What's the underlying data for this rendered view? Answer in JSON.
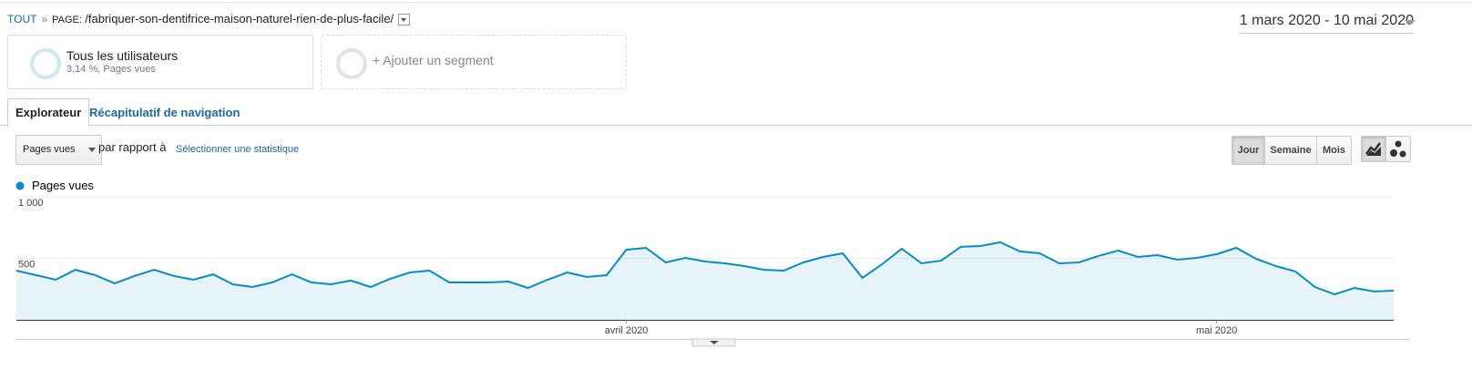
{
  "breadcrumb": {
    "root": "TOUT",
    "separator": "»",
    "label": "PAGE:",
    "path": "/fabriquer-son-dentifrice-maison-naturel-rien-de-plus-facile/"
  },
  "date_range": "1 mars 2020 - 10 mai 2020",
  "segments": [
    {
      "title": "Tous les utilisateurs",
      "subtitle": "3,14 %, Pages vues"
    }
  ],
  "add_segment": "+ Ajouter un segment",
  "tabs": [
    "Explorateur",
    "Récapitulatif de navigation"
  ],
  "controls": {
    "metric": "Pages vues",
    "compare": "par rapport à",
    "select_metric": "Sélectionner une statistique",
    "periods": [
      "Jour",
      "Semaine",
      "Mois"
    ]
  },
  "chart_data": {
    "type": "line",
    "categories": [
      null,
      null,
      null,
      null,
      null,
      null,
      null,
      null,
      null,
      null,
      null,
      null,
      null,
      null,
      null,
      null,
      null,
      null,
      null,
      null,
      null,
      null,
      null,
      null,
      null,
      null,
      null,
      null,
      null,
      null,
      null,
      "avril 2020",
      null,
      null,
      null,
      null,
      null,
      null,
      null,
      null,
      null,
      null,
      null,
      null,
      null,
      null,
      null,
      null,
      null,
      null,
      null,
      null,
      null,
      null,
      null,
      null,
      null,
      null,
      null,
      null,
      null,
      "mai 2020",
      null,
      null,
      null,
      null,
      null,
      null,
      null,
      null,
      null
    ],
    "series": [
      {
        "name": "Pages vues",
        "color": "#058dc7",
        "values": [
          400,
          363,
          326,
          407,
          363,
          296,
          356,
          407,
          356,
          326,
          370,
          289,
          267,
          304,
          370,
          304,
          289,
          319,
          267,
          333,
          385,
          400,
          304,
          304,
          304,
          311,
          259,
          326,
          385,
          348,
          363,
          570,
          585,
          467,
          504,
          474,
          459,
          437,
          407,
          400,
          467,
          511,
          541,
          341,
          452,
          578,
          459,
          481,
          593,
          600,
          630,
          556,
          541,
          459,
          467,
          519,
          563,
          511,
          526,
          489,
          504,
          533,
          585,
          496,
          437,
          393,
          267,
          207,
          259,
          230,
          237
        ]
      }
    ],
    "ylim": [
      0,
      1000
    ],
    "yticks": [
      {
        "value": 500,
        "label": "500"
      },
      {
        "value": 1000,
        "label": "1 000"
      }
    ],
    "grid": true
  }
}
